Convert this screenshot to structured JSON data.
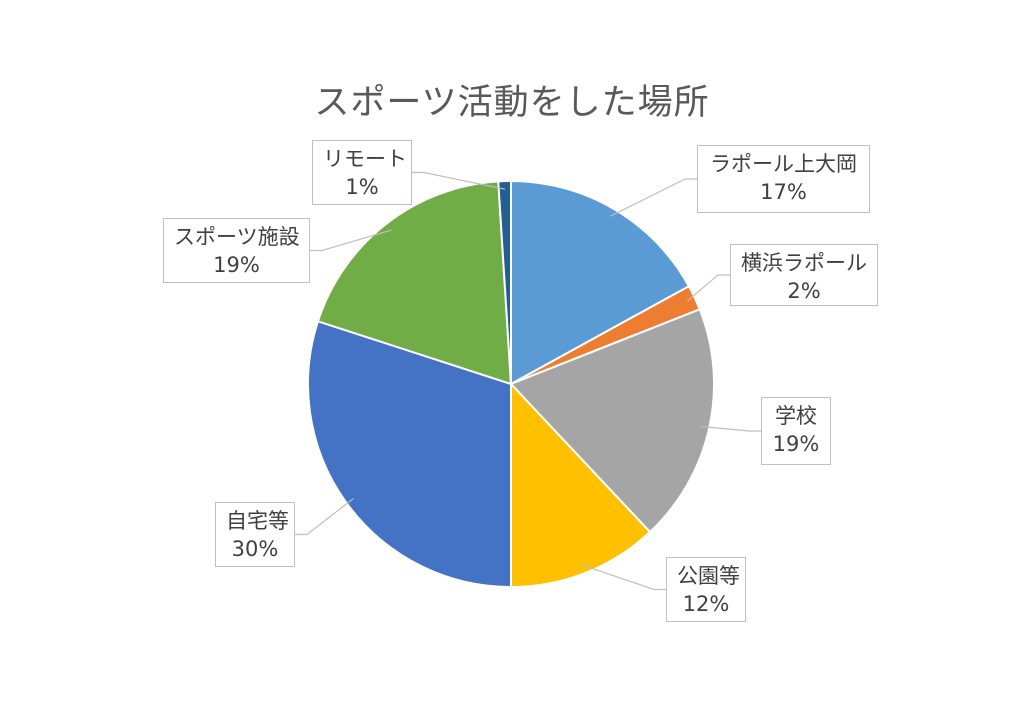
{
  "chart_data": {
    "type": "pie",
    "title": "スポーツ活動をした場所",
    "slices": [
      {
        "name": "ラポール上大岡",
        "value": 17,
        "pct_label": "17%",
        "color": "#5b9bd5"
      },
      {
        "name": "横浜ラポール",
        "value": 2,
        "pct_label": "2%",
        "color": "#ed7d31"
      },
      {
        "name": "学校",
        "value": 19,
        "pct_label": "19%",
        "color": "#a5a5a5"
      },
      {
        "name": "公園等",
        "value": 12,
        "pct_label": "12%",
        "color": "#ffc000"
      },
      {
        "name": "自宅等",
        "value": 30,
        "pct_label": "30%",
        "color": "#4472c4"
      },
      {
        "name": "スポーツ施設",
        "value": 19,
        "pct_label": "19%",
        "color": "#70ad47"
      },
      {
        "name": "リモート",
        "value": 1,
        "pct_label": "1%",
        "color": "#255e91"
      }
    ],
    "start_angle": "12 o'clock",
    "direction": "clockwise",
    "legend": "none"
  }
}
